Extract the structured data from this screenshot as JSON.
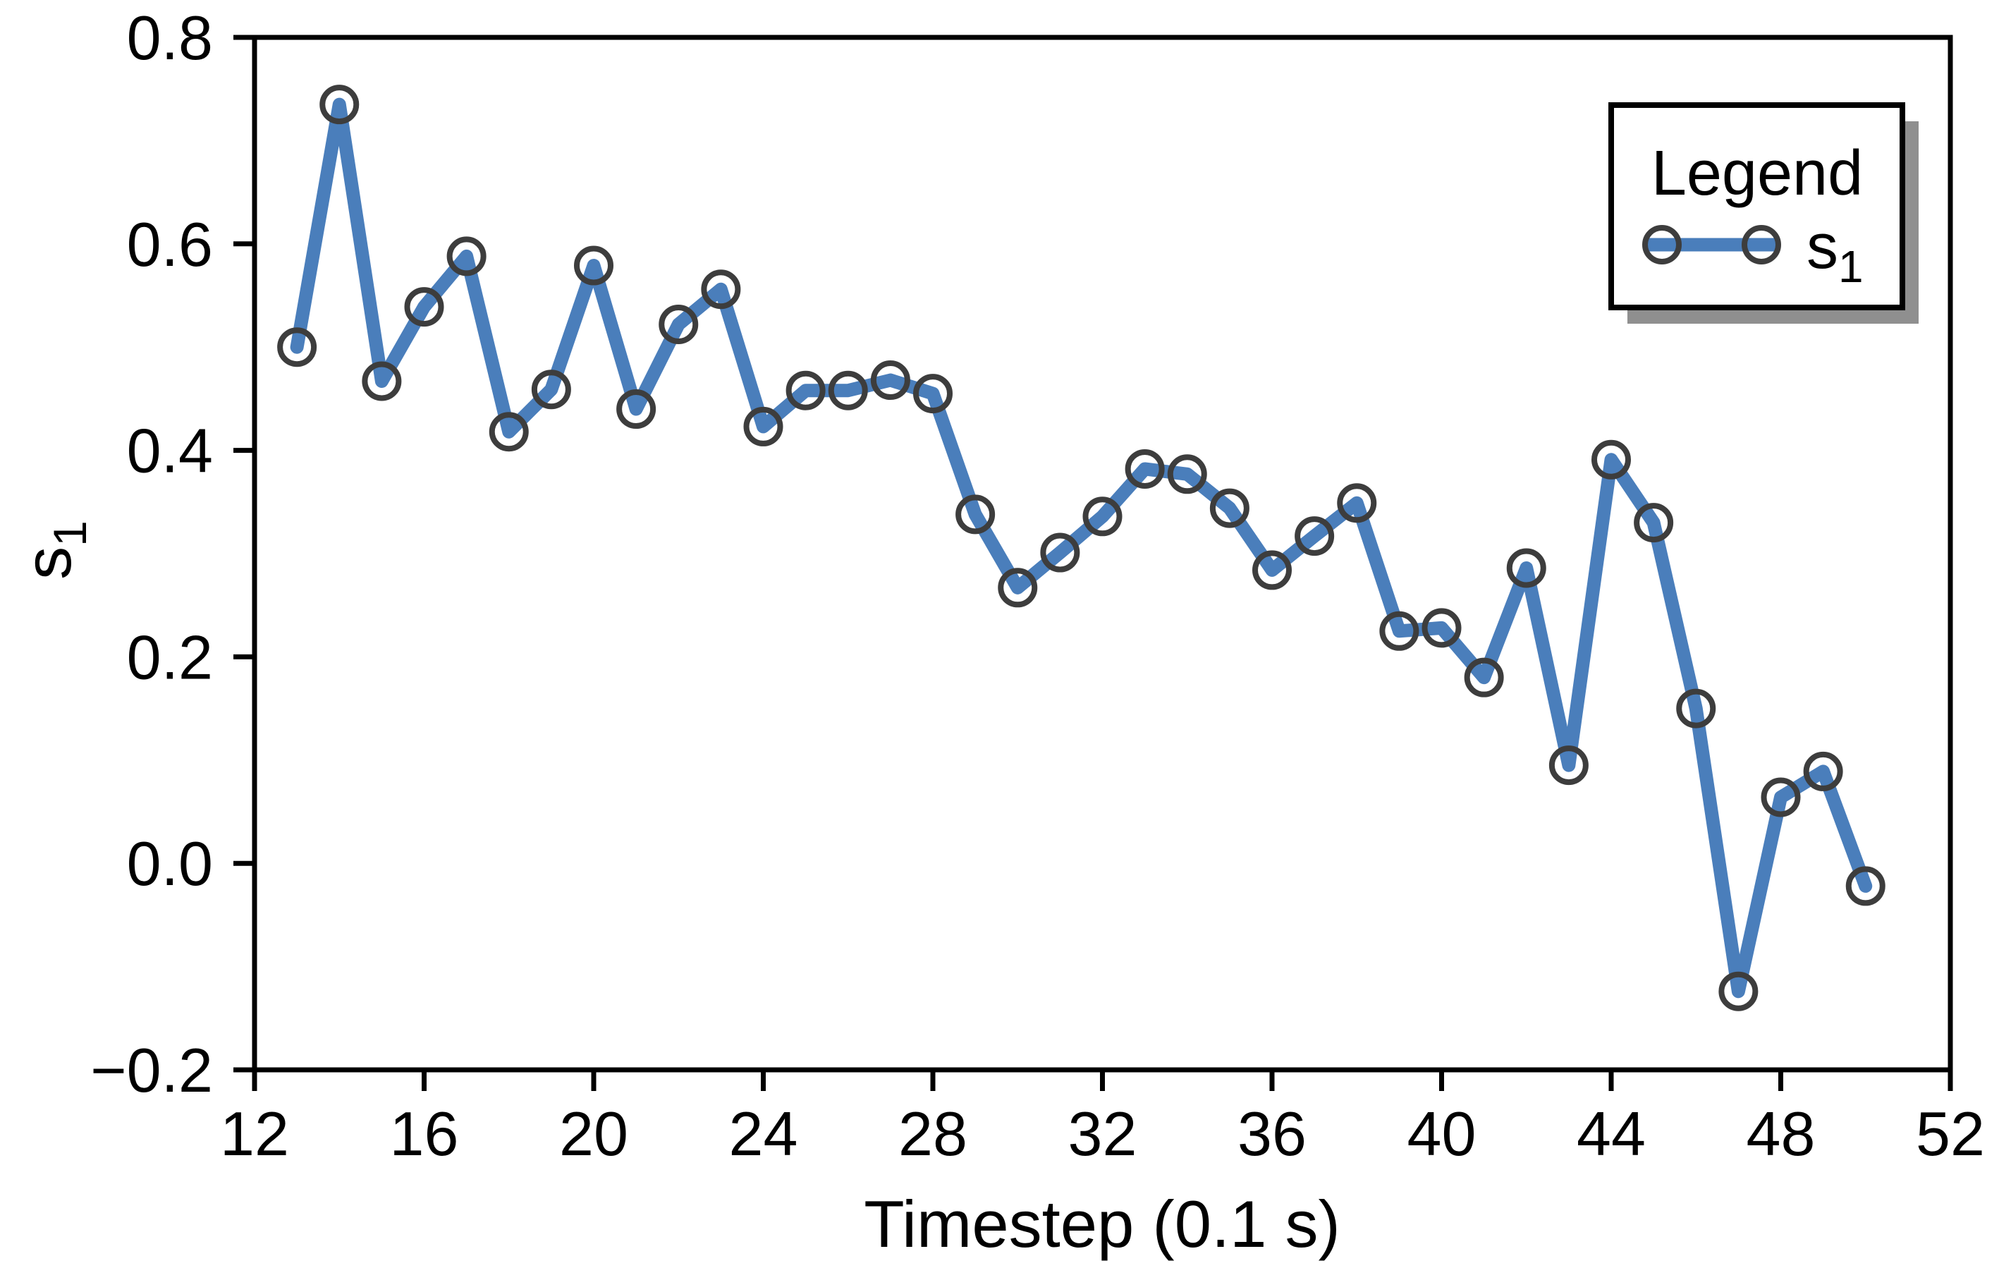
{
  "chart_data": {
    "type": "line",
    "title": "",
    "xlabel": "Timestep (0.1 s)",
    "ylabel_main": "s",
    "ylabel_sub": "1",
    "xlim": [
      12,
      52
    ],
    "ylim": [
      -0.2,
      0.8
    ],
    "xticks": [
      12,
      16,
      20,
      24,
      28,
      32,
      36,
      40,
      44,
      48,
      52
    ],
    "yticks": [
      -0.2,
      0.0,
      0.2,
      0.4,
      0.6,
      0.8
    ],
    "ytick_labels": [
      "−0.2",
      "0.0",
      "0.2",
      "0.4",
      "0.6",
      "0.8"
    ],
    "grid": false,
    "x": [
      13,
      14,
      15,
      16,
      17,
      18,
      19,
      20,
      21,
      22,
      23,
      24,
      25,
      26,
      27,
      28,
      29,
      30,
      31,
      32,
      33,
      34,
      35,
      36,
      37,
      38,
      39,
      40,
      41,
      42,
      43,
      44,
      45,
      46,
      47,
      48,
      49,
      50
    ],
    "series": [
      {
        "name_main": "s",
        "name_sub": "1",
        "values": [
          0.5,
          0.735,
          0.467,
          0.539,
          0.588,
          0.418,
          0.459,
          0.579,
          0.44,
          0.522,
          0.556,
          0.423,
          0.458,
          0.458,
          0.468,
          0.455,
          0.338,
          0.267,
          0.301,
          0.336,
          0.382,
          0.377,
          0.344,
          0.284,
          0.317,
          0.349,
          0.225,
          0.228,
          0.18,
          0.286,
          0.095,
          0.391,
          0.33,
          0.15,
          -0.124,
          0.064,
          0.089,
          -0.022
        ]
      }
    ],
    "legend": {
      "title": "Legend",
      "position": "top-right"
    },
    "colors": {
      "line": "#4a7ebb",
      "marker_edge": "#3d3d3d",
      "axis": "#000000",
      "legend_shadow": "#8f8f8f",
      "background": "#ffffff"
    }
  }
}
